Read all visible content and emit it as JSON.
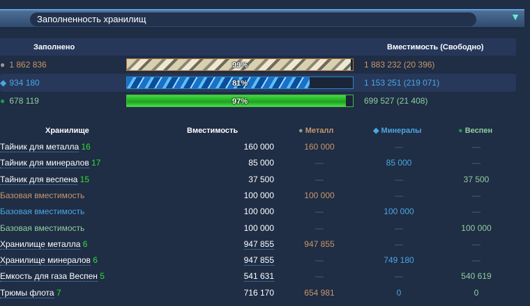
{
  "title": "Заполненность хранилищ",
  "colors": {
    "metal": "#c8976a",
    "minerals": "#4aa8e0",
    "vespen": "#8fcf9f",
    "level": "#2fe02f"
  },
  "summary": {
    "filled_label": "Заполнено",
    "capacity_label": "Вместимость (Свободно)",
    "rows": [
      {
        "icon": "metal-icon",
        "amount": "1 862 836",
        "percent": 99,
        "percent_label": "99%",
        "capacity": "1 883 232 (20 396)"
      },
      {
        "icon": "minerals-icon",
        "amount": "934 180",
        "percent": 81,
        "percent_label": "81%",
        "capacity": "1 153 251 (219 071)"
      },
      {
        "icon": "vespen-icon",
        "amount": "678 119",
        "percent": 97,
        "percent_label": "97%",
        "capacity": "699 527 (21 408)"
      }
    ]
  },
  "table": {
    "headers": {
      "storage": "Хранилище",
      "capacity": "Вместимость",
      "metal": "Металл",
      "minerals": "Минералы",
      "vespen": "Веспен"
    },
    "rows": [
      {
        "name": "Тайник для металла",
        "level": "16",
        "capacity": "160 000",
        "metal": "160 000",
        "minerals": "—",
        "vespen": "—",
        "type": "building"
      },
      {
        "name": "Тайник для минералов",
        "level": "17",
        "capacity": "85 000",
        "metal": "—",
        "minerals": "85 000",
        "vespen": "—",
        "type": "building"
      },
      {
        "name": "Тайник для веспена",
        "level": "15",
        "capacity": "37 500",
        "metal": "—",
        "minerals": "—",
        "vespen": "37 500",
        "type": "building"
      },
      {
        "name": "Базовая вместимость",
        "level": "",
        "capacity": "100 000",
        "metal": "100 000",
        "minerals": "—",
        "vespen": "—",
        "type": "metal"
      },
      {
        "name": "Базовая вместимость",
        "level": "",
        "capacity": "100 000",
        "metal": "—",
        "minerals": "100 000",
        "vespen": "—",
        "type": "minerals"
      },
      {
        "name": "Базовая вместимость",
        "level": "",
        "capacity": "100 000",
        "metal": "—",
        "minerals": "—",
        "vespen": "100 000",
        "type": "vespen"
      },
      {
        "name": "Хранилище металла",
        "level": "6",
        "capacity": "947 855",
        "metal": "947 855",
        "minerals": "—",
        "vespen": "—",
        "type": "building",
        "cap_link": true
      },
      {
        "name": "Хранилище минералов",
        "level": "6",
        "capacity": "947 855",
        "metal": "—",
        "minerals": "749 180",
        "vespen": "—",
        "type": "building",
        "cap_link": true
      },
      {
        "name": "Емкость для газа Веспен",
        "level": "5",
        "capacity": "541 631",
        "metal": "—",
        "minerals": "—",
        "vespen": "540 619",
        "type": "building",
        "cap_link": true
      },
      {
        "name": "Трюмы флота",
        "level": "7",
        "capacity": "716 170",
        "metal": "654 981",
        "minerals": "0",
        "vespen": "0",
        "type": "building"
      }
    ]
  }
}
